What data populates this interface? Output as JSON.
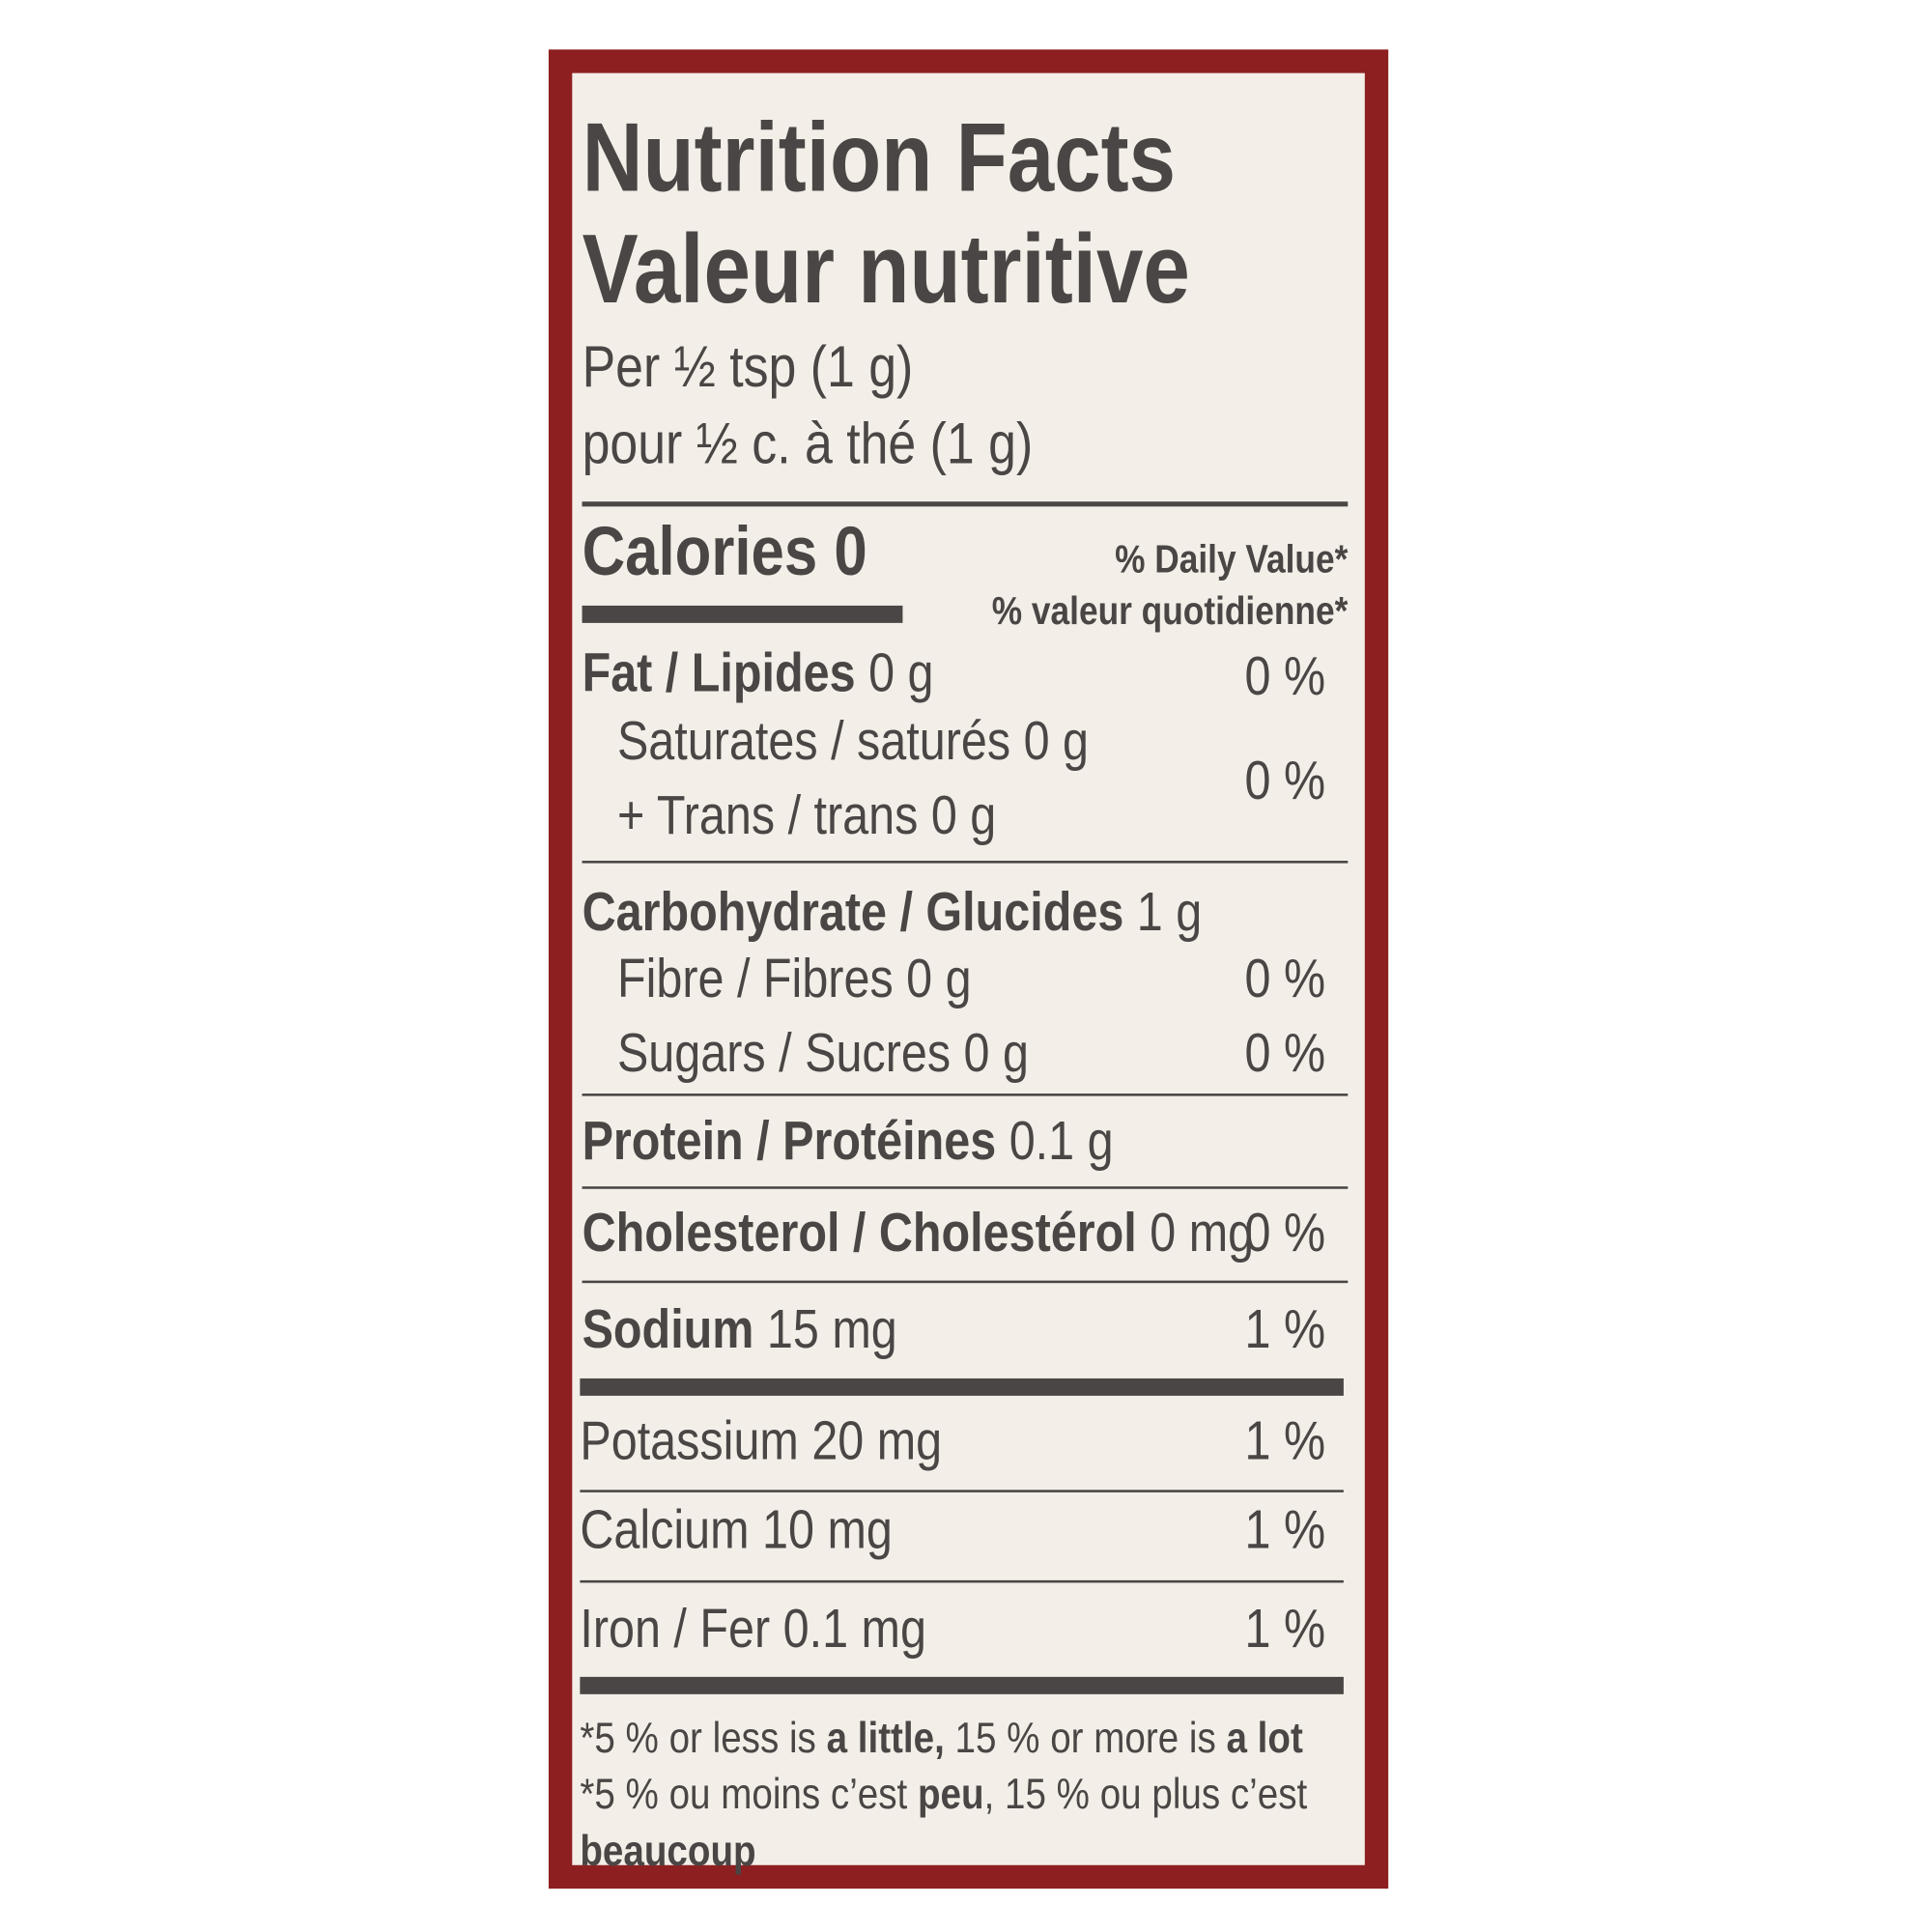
{
  "title_en": "Nutrition Facts",
  "title_fr": "Valeur nutritive",
  "serving_en": "Per ½ tsp (1 g)",
  "serving_fr": "pour ½ c. à thé (1 g)",
  "calories_label": "Calories 0",
  "dv_en": "% Daily Value*",
  "dv_fr": "% valeur quotidienne*",
  "rows": [
    {
      "label": "Fat / Lipides",
      "amount": "0 g",
      "dv": "0 %"
    },
    {
      "label": "Saturates / saturés 0 g",
      "amount": "",
      "dv": "0 %"
    },
    {
      "label": "+ Trans / trans 0 g",
      "amount": "",
      "dv": ""
    },
    {
      "label": "Carbohydrate / Glucides",
      "amount": "1 g",
      "dv": ""
    },
    {
      "label": "Fibre / Fibres 0 g",
      "amount": "",
      "dv": "0 %"
    },
    {
      "label": "Sugars / Sucres 0 g",
      "amount": "",
      "dv": "0 %"
    },
    {
      "label": "Protein / Protéines",
      "amount": "0.1 g",
      "dv": ""
    },
    {
      "label": "Cholesterol / Cholestérol",
      "amount": "0 mg",
      "dv": "0 %"
    },
    {
      "label": "Sodium",
      "amount": "15 mg",
      "dv": "1 %"
    },
    {
      "label": "Potassium 20 mg",
      "amount": "",
      "dv": "1 %"
    },
    {
      "label": "Calcium 10 mg",
      "amount": "",
      "dv": "1 %"
    },
    {
      "label": "Iron / Fer 0.1 mg",
      "amount": "",
      "dv": "1 %"
    }
  ],
  "footnote": {
    "en": [
      "*5 % or less is ",
      "a little,",
      " 15 % or more is ",
      "a lot"
    ],
    "fr": [
      "*5 % ou moins c’est ",
      "peu",
      ", 15 % ou plus c’est"
    ],
    "fr_end": "beaucoup"
  },
  "colors": {
    "border": "#8e1f21",
    "background": "#f3efe8",
    "text": "#4a4645"
  }
}
